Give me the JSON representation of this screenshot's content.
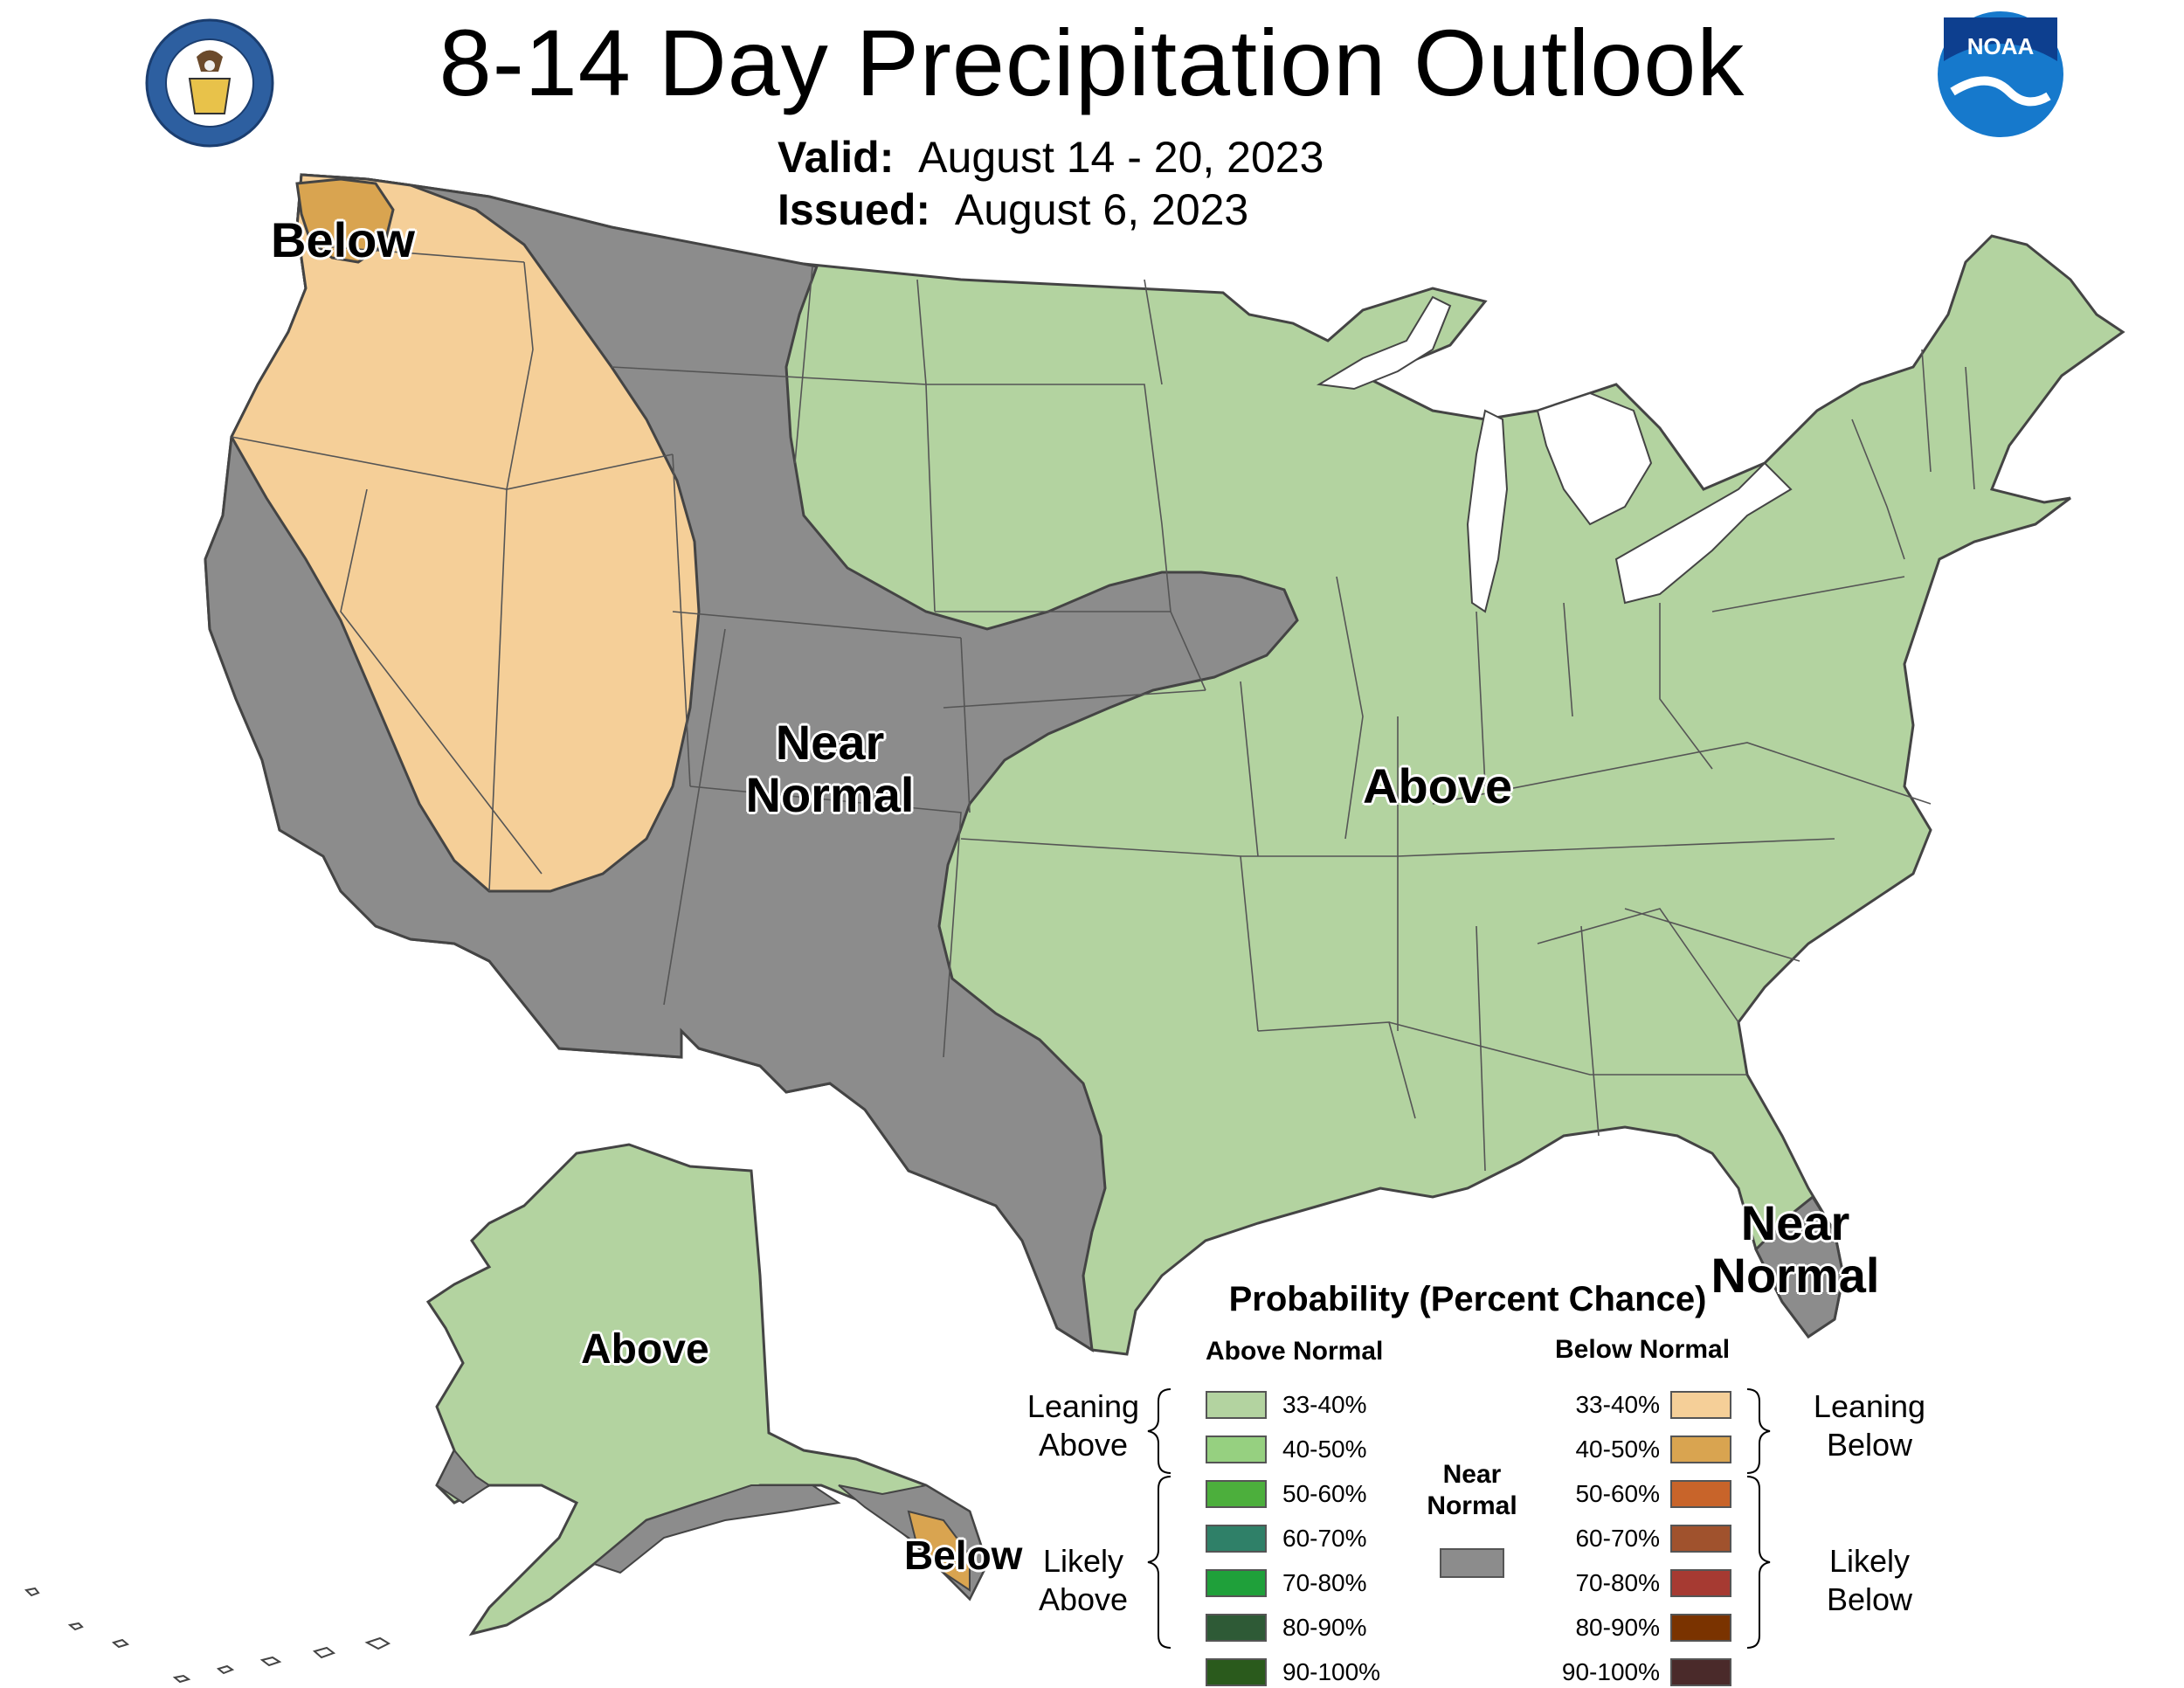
{
  "title": "8-14 Day Precipitation Outlook",
  "valid": {
    "label": "Valid:",
    "value": "August 14 - 20, 2023"
  },
  "issued": {
    "label": "Issued:",
    "value": "August 6, 2023"
  },
  "logos": {
    "left": {
      "name": "department-of-commerce-seal",
      "text": "DEPARTMENT OF COMMERCE · UNITED STATES OF AMERICA"
    },
    "right": {
      "name": "noaa-logo",
      "text": "NOAA"
    }
  },
  "map_labels": {
    "below_nw": "Below",
    "near_normal_west": [
      "Near",
      "Normal"
    ],
    "above_east": "Above",
    "near_normal_florida": [
      "Near",
      "Normal"
    ],
    "above_alaska": "Above",
    "below_alaska": "Below"
  },
  "colors": {
    "above_33_40": "#b3d3a0",
    "near_normal": "#8c8c8c",
    "below_33_40": "#f5cf98",
    "below_40_50": "#d9a450",
    "border": "#444444"
  },
  "legend": {
    "title": "Probability (Percent Chance)",
    "above_header": "Above Normal",
    "below_header": "Below Normal",
    "near_header": [
      "Near",
      "Normal"
    ],
    "leaning_above": [
      "Leaning",
      "Above"
    ],
    "likely_above": [
      "Likely",
      "Above"
    ],
    "leaning_below": [
      "Leaning",
      "Below"
    ],
    "likely_below": [
      "Likely",
      "Below"
    ],
    "above": [
      {
        "label": "33-40%",
        "color": "#b3d3a0"
      },
      {
        "label": "40-50%",
        "color": "#96d080"
      },
      {
        "label": "50-60%",
        "color": "#4caf3c"
      },
      {
        "label": "60-70%",
        "color": "#2f8068"
      },
      {
        "label": "70-80%",
        "color": "#1fa03a"
      },
      {
        "label": "80-90%",
        "color": "#2e5a36"
      },
      {
        "label": "90-100%",
        "color": "#2a5a1c"
      }
    ],
    "below": [
      {
        "label": "33-40%",
        "color": "#f5cf98"
      },
      {
        "label": "40-50%",
        "color": "#d9a450"
      },
      {
        "label": "50-60%",
        "color": "#c8642a"
      },
      {
        "label": "60-70%",
        "color": "#a0522d"
      },
      {
        "label": "70-80%",
        "color": "#a63a32"
      },
      {
        "label": "80-90%",
        "color": "#7a3300"
      },
      {
        "label": "90-100%",
        "color": "#4a2a2a"
      }
    ],
    "near_color": "#8c8c8c"
  }
}
